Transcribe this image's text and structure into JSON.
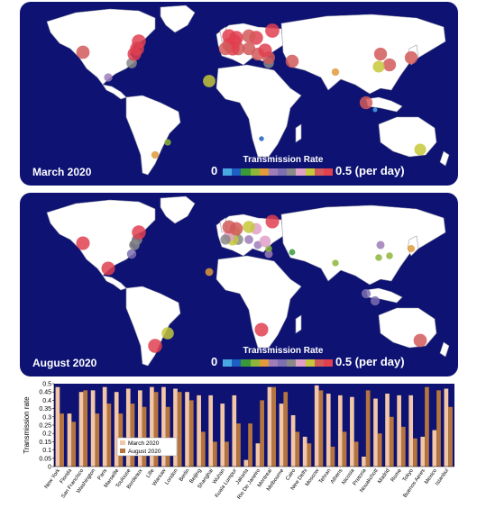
{
  "maps": [
    {
      "label": "March 2020",
      "colorbar": {
        "title": "Transmission Rate",
        "min": "0",
        "max": "0.5 (per day)"
      },
      "cities": [
        {
          "name": "New York",
          "rate": 0.48
        },
        {
          "name": "Florida",
          "rate": 0.32
        },
        {
          "name": "San Francisco",
          "rate": 0.45
        },
        {
          "name": "Washington",
          "rate": 0.46
        },
        {
          "name": "Paris",
          "rate": 0.48
        },
        {
          "name": "Marseille",
          "rate": 0.45
        },
        {
          "name": "Toulouse",
          "rate": 0.47
        },
        {
          "name": "Bordeaux",
          "rate": 0.46
        },
        {
          "name": "Lille",
          "rate": 0.48
        },
        {
          "name": "Warsaw",
          "rate": 0.48
        },
        {
          "name": "London",
          "rate": 0.47
        },
        {
          "name": "Berlin",
          "rate": 0.45
        },
        {
          "name": "Beijing",
          "rate": 0.43
        },
        {
          "name": "Shanghai",
          "rate": 0.43
        },
        {
          "name": "Wuhan",
          "rate": 0.38
        },
        {
          "name": "Kuala Lumpur",
          "rate": 0.43
        },
        {
          "name": "Jakarta",
          "rate": 0.04
        },
        {
          "name": "Rio De Janeiro",
          "rate": 0.14
        },
        {
          "name": "Montreal",
          "rate": 0.48
        },
        {
          "name": "Melbourne",
          "rate": 0.38
        },
        {
          "name": "Cairo",
          "rate": 0.31
        },
        {
          "name": "New Delhi",
          "rate": 0.18
        },
        {
          "name": "Moscow",
          "rate": 0.49
        },
        {
          "name": "Tehran",
          "rate": 0.44
        },
        {
          "name": "Athens",
          "rate": 0.43
        },
        {
          "name": "Nicosia",
          "rate": 0.42
        },
        {
          "name": "Pretoria",
          "rate": 0.06
        },
        {
          "name": "Nouakchott",
          "rate": 0.41
        },
        {
          "name": "Madrid",
          "rate": 0.44
        },
        {
          "name": "Rome",
          "rate": 0.43
        },
        {
          "name": "Tokyo",
          "rate": 0.43
        },
        {
          "name": "Buenos Aeres",
          "rate": 0.18
        },
        {
          "name": "Mexico",
          "rate": 0.22
        },
        {
          "name": "Istanbul",
          "rate": 0.47
        }
      ]
    },
    {
      "label": "August 2020",
      "colorbar": {
        "title": "Transmission Rate",
        "min": "0",
        "max": "0.5 (per day)"
      },
      "cities": [
        {
          "name": "New York",
          "rate": 0.32
        },
        {
          "name": "Florida",
          "rate": 0.27
        },
        {
          "name": "San Francisco",
          "rate": 0.46
        },
        {
          "name": "Washington",
          "rate": 0.32
        },
        {
          "name": "Paris",
          "rate": 0.38
        },
        {
          "name": "Marseille",
          "rate": 0.32
        },
        {
          "name": "Toulouse",
          "rate": 0.38
        },
        {
          "name": "Bordeaux",
          "rate": 0.36
        },
        {
          "name": "Lille",
          "rate": 0.45
        },
        {
          "name": "Warsaw",
          "rate": 0.36
        },
        {
          "name": "London",
          "rate": 0.45
        },
        {
          "name": "Berlin",
          "rate": 0.4
        },
        {
          "name": "Beijing",
          "rate": 0.21
        },
        {
          "name": "Shanghai",
          "rate": 0.15
        },
        {
          "name": "Wuhan",
          "rate": 0.15
        },
        {
          "name": "Kuala Lumpur",
          "rate": 0.26
        },
        {
          "name": "Jakarta",
          "rate": 0.26
        },
        {
          "name": "Rio De Janeiro",
          "rate": 0.4
        },
        {
          "name": "Montreal",
          "rate": 0.48
        },
        {
          "name": "Melbourne",
          "rate": 0.45
        },
        {
          "name": "Cairo",
          "rate": 0.21
        },
        {
          "name": "New Delhi",
          "rate": 0.14
        },
        {
          "name": "Moscow",
          "rate": 0.46
        },
        {
          "name": "Tehran",
          "rate": 0.12
        },
        {
          "name": "Athens",
          "rate": 0.21
        },
        {
          "name": "Nicosia",
          "rate": 0.15
        },
        {
          "name": "Pretoria",
          "rate": 0.46
        },
        {
          "name": "Nouakchott",
          "rate": 0.2
        },
        {
          "name": "Madrid",
          "rate": 0.3
        },
        {
          "name": "Rome",
          "rate": 0.24
        },
        {
          "name": "Tokyo",
          "rate": 0.17
        },
        {
          "name": "Buenos Aeres",
          "rate": 0.48
        },
        {
          "name": "Mexico",
          "rate": 0.46
        },
        {
          "name": "Istanbul",
          "rate": 0.36
        }
      ]
    }
  ],
  "colorbar_colors": [
    "#4aa8e0",
    "#1e5fc4",
    "#3a9a3a",
    "#8fb63a",
    "#e29a3a",
    "#9e7db8",
    "#7d6fb0",
    "#8a8a8a",
    "#e0a0c8",
    "#c5c83a",
    "#d25a5a",
    "#e04050"
  ],
  "chart_data": {
    "type": "bar",
    "ylabel": "Transmission rate",
    "ylim": [
      0,
      0.5
    ],
    "yticks": [
      "0",
      "0.05",
      "0.1",
      "0.15",
      "0.2",
      "0.25",
      "0.3",
      "0.35",
      "0.4",
      "0.45",
      "0.5"
    ],
    "legend_position": "bottom-left",
    "categories": [
      "New York",
      "Florida",
      "San Francisco",
      "Washington",
      "Paris",
      "Marseille",
      "Toulouse",
      "Bordeaux",
      "Lille",
      "Warsaw",
      "London",
      "Berlin",
      "Beijing",
      "Shanghai",
      "Wuhan",
      "Kuala Lumpur",
      "Jakarta",
      "Rio De Janeiro",
      "Montreal",
      "Melbourne",
      "Cairo",
      "New Delhi",
      "Moscow",
      "Tehran",
      "Athens",
      "Nicosia",
      "Pretoria",
      "Nouakchott",
      "Madrid",
      "Rome",
      "Tokyo",
      "Buenos Aeres",
      "Mexico",
      "Istanbul"
    ],
    "series": [
      {
        "name": "March 2020",
        "color": "#f2c6a6",
        "values": [
          0.48,
          0.32,
          0.45,
          0.46,
          0.48,
          0.45,
          0.47,
          0.46,
          0.48,
          0.48,
          0.47,
          0.45,
          0.43,
          0.43,
          0.38,
          0.43,
          0.04,
          0.14,
          0.48,
          0.38,
          0.31,
          0.18,
          0.49,
          0.44,
          0.43,
          0.42,
          0.06,
          0.41,
          0.44,
          0.43,
          0.43,
          0.18,
          0.22,
          0.47
        ]
      },
      {
        "name": "August 2020",
        "color": "#b5753f",
        "values": [
          0.32,
          0.27,
          0.46,
          0.32,
          0.38,
          0.32,
          0.38,
          0.36,
          0.45,
          0.36,
          0.45,
          0.4,
          0.21,
          0.15,
          0.15,
          0.26,
          0.26,
          0.4,
          0.48,
          0.45,
          0.21,
          0.14,
          0.46,
          0.12,
          0.21,
          0.15,
          0.46,
          0.2,
          0.3,
          0.24,
          0.17,
          0.48,
          0.46,
          0.36
        ]
      }
    ],
    "background": "#0d1273"
  }
}
